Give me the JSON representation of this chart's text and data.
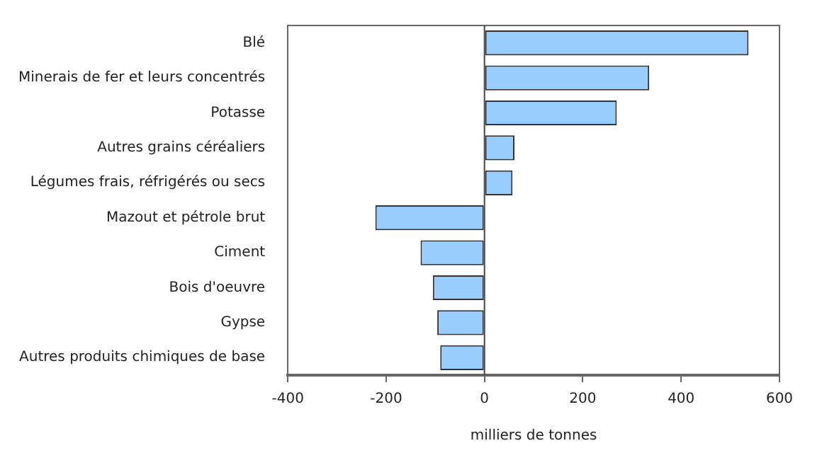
{
  "chart_data": {
    "type": "bar",
    "orientation": "horizontal",
    "xlabel": "milliers de tonnes",
    "categories": [
      "Blé",
      "Minerais de fer et leurs concentrés",
      "Potasse",
      "Autres grains céréaliers",
      "Légumes frais, réfrigérés ou secs",
      "Mazout et pétrole brut",
      "Ciment",
      "Bois d'oeuvre",
      "Gypse",
      "Autres produits chimiques de base"
    ],
    "values": [
      537,
      335,
      269,
      61,
      57,
      -222,
      -130,
      -105,
      -96,
      -90
    ],
    "color": "#99ccff",
    "xlim": [
      -400,
      600
    ],
    "xticks": [
      -400,
      -200,
      0,
      200,
      400,
      600
    ],
    "grid": false,
    "legend": false,
    "ref_lines": [
      {
        "axis": "x",
        "value": 0,
        "color": "#444444"
      }
    ]
  }
}
